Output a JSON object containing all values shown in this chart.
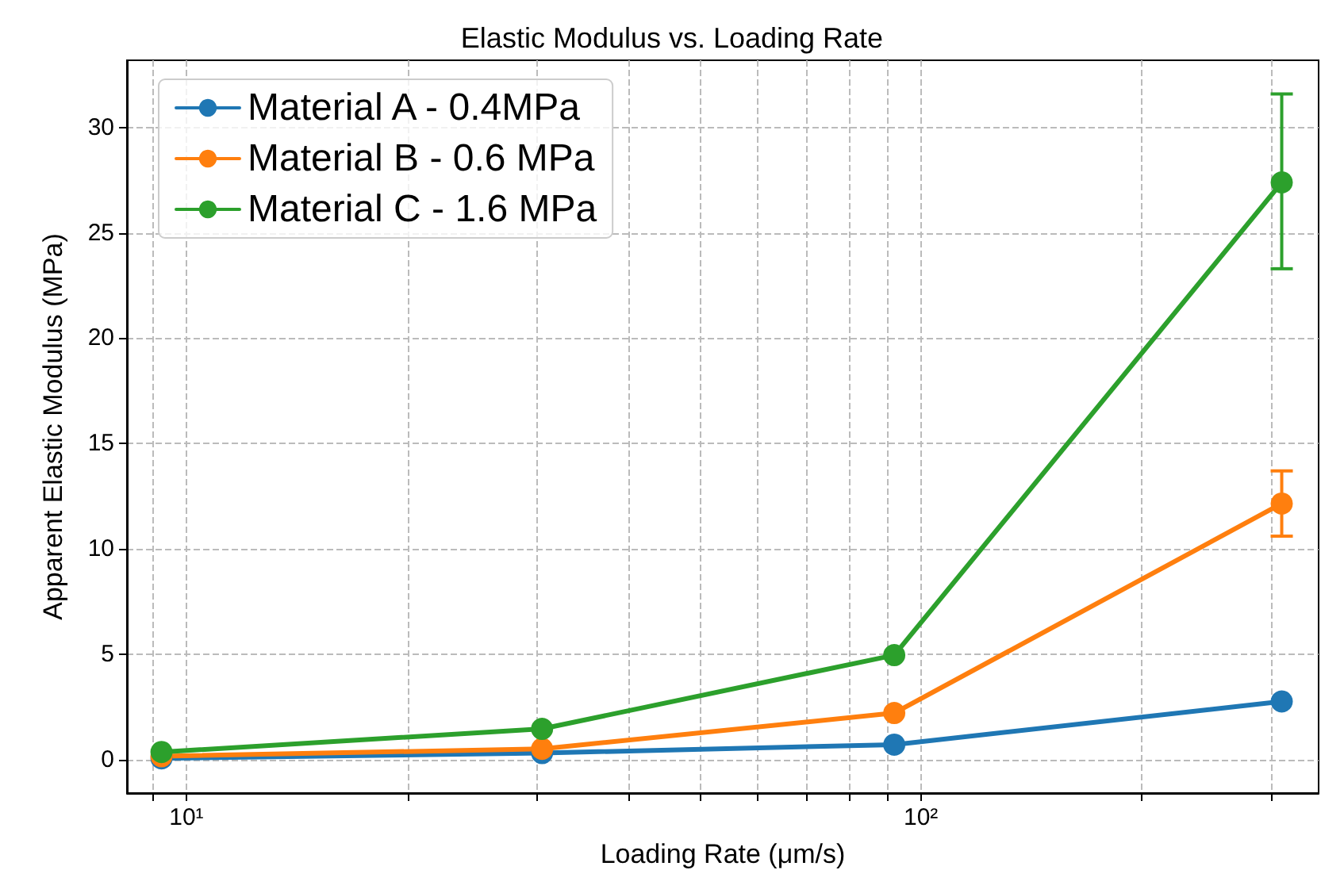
{
  "chart_data": {
    "type": "line",
    "title": "Elastic Modulus vs. Loading Rate",
    "xlabel": "Loading Rate (μm/s)",
    "ylabel": "Apparent Elastic Modulus (MPa)",
    "x": [
      9.25,
      30.5,
      92,
      310
    ],
    "series": [
      {
        "name": "Material A - 0.4MPa",
        "color": "#1f77b4",
        "values": [
          0.05,
          0.3,
          0.7,
          2.75
        ]
      },
      {
        "name": "Material B - 0.6 MPa",
        "color": "#ff7f0e",
        "values": [
          0.15,
          0.5,
          2.2,
          12.15
        ],
        "errors": [
          null,
          null,
          null,
          [
            10.6,
            13.7
          ]
        ]
      },
      {
        "name": "Material C - 1.6 MPa",
        "color": "#2ca02c",
        "values": [
          0.35,
          1.45,
          4.95,
          27.4
        ],
        "errors": [
          null,
          null,
          null,
          [
            23.3,
            31.6
          ]
        ]
      }
    ],
    "log": "x",
    "xlim": [
      8.3,
      348
    ],
    "xticks": [
      {
        "value": 9,
        "label": null
      },
      {
        "value": 10,
        "label": "10¹"
      },
      {
        "value": 20,
        "label": null
      },
      {
        "value": 30,
        "label": null
      },
      {
        "value": 40,
        "label": null
      },
      {
        "value": 50,
        "label": null
      },
      {
        "value": 60,
        "label": null
      },
      {
        "value": 70,
        "label": null
      },
      {
        "value": 80,
        "label": null
      },
      {
        "value": 90,
        "label": null
      },
      {
        "value": 100,
        "label": "10²"
      },
      {
        "value": 200,
        "label": null
      },
      {
        "value": 300,
        "label": null
      }
    ],
    "ylim": [
      -1.6,
      33.2
    ],
    "yticks": [
      0,
      5,
      10,
      15,
      20,
      25,
      30
    ],
    "grid": true,
    "legend": "top left",
    "marker": "circle",
    "line_style": "solid"
  }
}
